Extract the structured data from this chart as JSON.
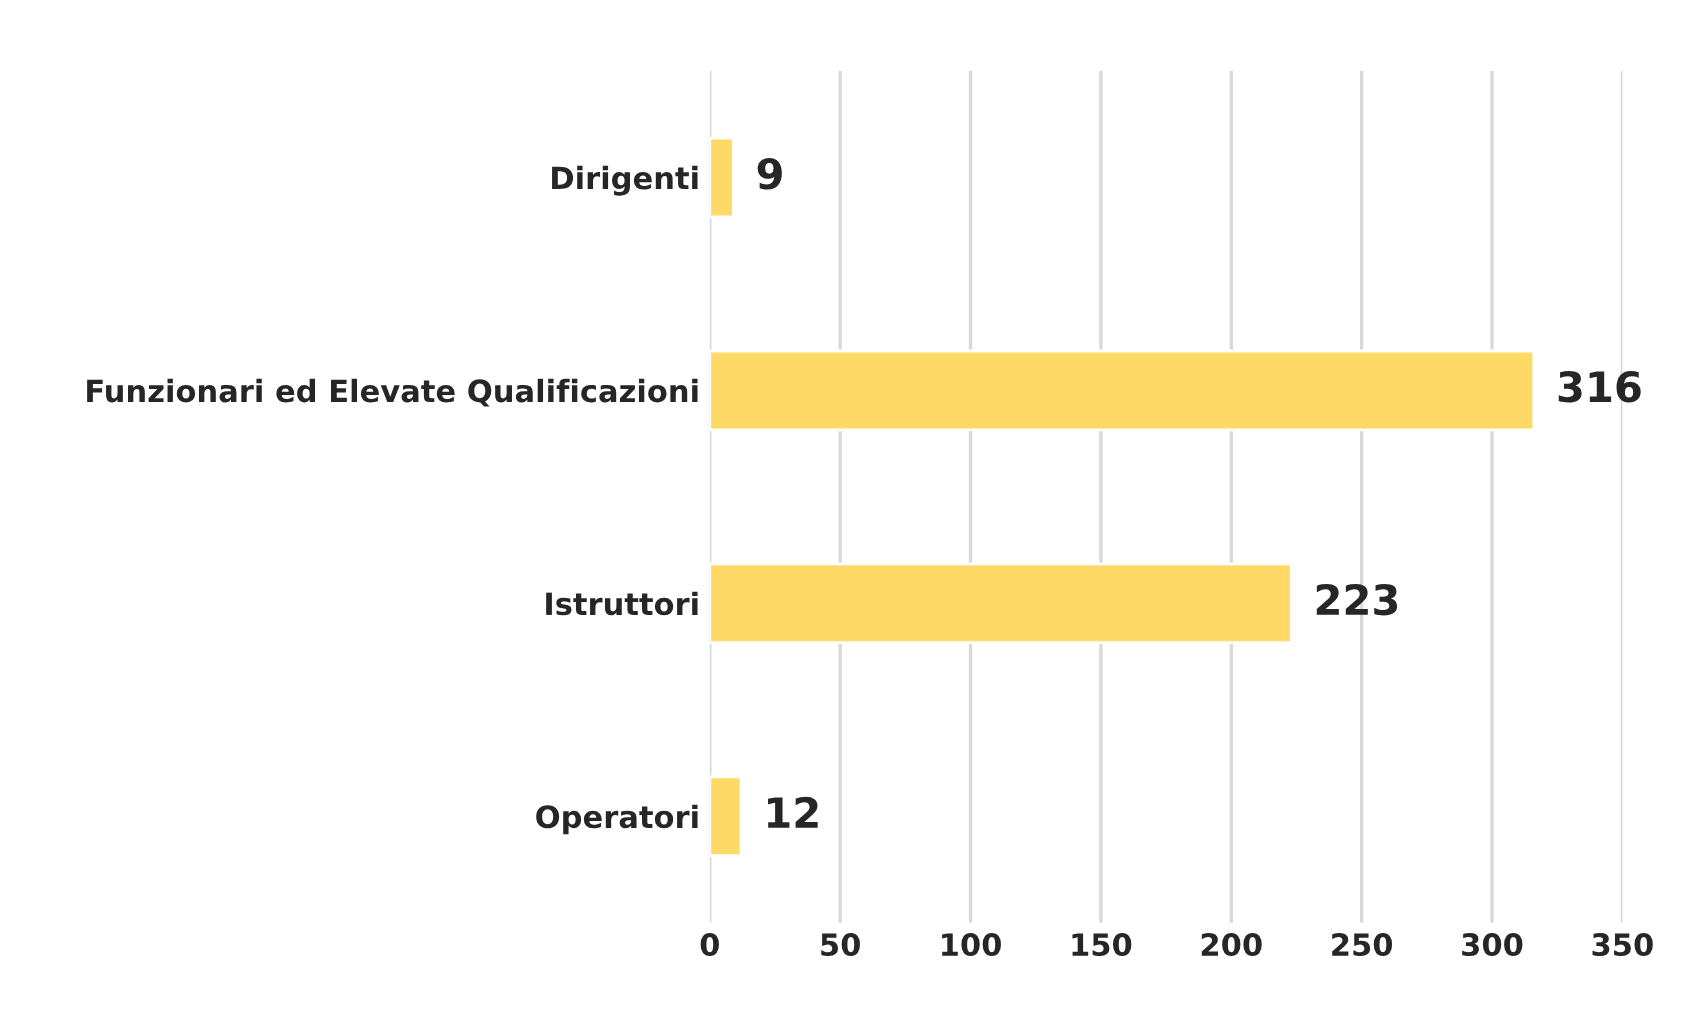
{
  "chart_data": {
    "type": "bar",
    "orientation": "horizontal",
    "categories": [
      "Dirigenti",
      "Funzionari ed Elevate Qualificazioni",
      "Istruttori",
      "Operatori"
    ],
    "values": [
      9,
      316,
      223,
      12
    ],
    "color": "#ffd966",
    "xlim": [
      0,
      350
    ],
    "xticks": [
      0,
      50,
      100,
      150,
      200,
      250,
      300,
      350
    ],
    "grid": "x",
    "data_labels": true
  }
}
